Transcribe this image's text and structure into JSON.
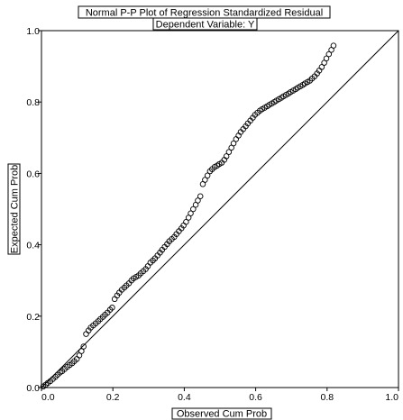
{
  "chart_data": {
    "type": "scatter",
    "title": "Normal P-P Plot of Regression Standardized Residual",
    "subtitle": "Dependent Variable: Y",
    "xlabel": "Observed Cum Prob",
    "ylabel": "Expected Cum Prob",
    "xlim": [
      0,
      1
    ],
    "ylim": [
      0,
      1
    ],
    "xticks": [
      "0.0",
      "0.2",
      "0.4",
      "0.6",
      "0.8",
      "1.0"
    ],
    "yticks": [
      "0.0",
      "0.2",
      "0.4",
      "0.6",
      "0.8",
      "1.0"
    ],
    "reference_line": [
      [
        0,
        0
      ],
      [
        1,
        1
      ]
    ],
    "grid": false,
    "legend": "none",
    "series": [
      {
        "marker": "open-circle",
        "points": [
          [
            0.005,
            0.003
          ],
          [
            0.012,
            0.008
          ],
          [
            0.018,
            0.013
          ],
          [
            0.025,
            0.018
          ],
          [
            0.032,
            0.024
          ],
          [
            0.039,
            0.03
          ],
          [
            0.045,
            0.036
          ],
          [
            0.052,
            0.042
          ],
          [
            0.058,
            0.046
          ],
          [
            0.065,
            0.052
          ],
          [
            0.072,
            0.058
          ],
          [
            0.079,
            0.063
          ],
          [
            0.086,
            0.068
          ],
          [
            0.092,
            0.074
          ],
          [
            0.099,
            0.08
          ],
          [
            0.106,
            0.09
          ],
          [
            0.112,
            0.102
          ],
          [
            0.118,
            0.115
          ],
          [
            0.125,
            0.15
          ],
          [
            0.132,
            0.16
          ],
          [
            0.138,
            0.168
          ],
          [
            0.145,
            0.174
          ],
          [
            0.152,
            0.18
          ],
          [
            0.159,
            0.186
          ],
          [
            0.165,
            0.192
          ],
          [
            0.172,
            0.198
          ],
          [
            0.178,
            0.204
          ],
          [
            0.185,
            0.21
          ],
          [
            0.192,
            0.218
          ],
          [
            0.198,
            0.224
          ],
          [
            0.205,
            0.248
          ],
          [
            0.212,
            0.258
          ],
          [
            0.218,
            0.266
          ],
          [
            0.225,
            0.274
          ],
          [
            0.232,
            0.28
          ],
          [
            0.238,
            0.286
          ],
          [
            0.245,
            0.292
          ],
          [
            0.252,
            0.3
          ],
          [
            0.258,
            0.306
          ],
          [
            0.265,
            0.31
          ],
          [
            0.272,
            0.314
          ],
          [
            0.278,
            0.32
          ],
          [
            0.285,
            0.326
          ],
          [
            0.292,
            0.332
          ],
          [
            0.298,
            0.34
          ],
          [
            0.305,
            0.35
          ],
          [
            0.312,
            0.356
          ],
          [
            0.318,
            0.362
          ],
          [
            0.325,
            0.37
          ],
          [
            0.332,
            0.378
          ],
          [
            0.338,
            0.386
          ],
          [
            0.345,
            0.394
          ],
          [
            0.352,
            0.402
          ],
          [
            0.358,
            0.41
          ],
          [
            0.365,
            0.416
          ],
          [
            0.372,
            0.422
          ],
          [
            0.378,
            0.43
          ],
          [
            0.385,
            0.438
          ],
          [
            0.392,
            0.446
          ],
          [
            0.398,
            0.454
          ],
          [
            0.405,
            0.464
          ],
          [
            0.412,
            0.476
          ],
          [
            0.418,
            0.488
          ],
          [
            0.425,
            0.5
          ],
          [
            0.432,
            0.512
          ],
          [
            0.438,
            0.524
          ],
          [
            0.445,
            0.536
          ],
          [
            0.452,
            0.57
          ],
          [
            0.458,
            0.582
          ],
          [
            0.465,
            0.594
          ],
          [
            0.472,
            0.606
          ],
          [
            0.478,
            0.612
          ],
          [
            0.485,
            0.618
          ],
          [
            0.492,
            0.622
          ],
          [
            0.498,
            0.626
          ],
          [
            0.505,
            0.63
          ],
          [
            0.512,
            0.638
          ],
          [
            0.518,
            0.648
          ],
          [
            0.525,
            0.66
          ],
          [
            0.532,
            0.672
          ],
          [
            0.538,
            0.684
          ],
          [
            0.545,
            0.696
          ],
          [
            0.552,
            0.706
          ],
          [
            0.558,
            0.716
          ],
          [
            0.565,
            0.724
          ],
          [
            0.572,
            0.732
          ],
          [
            0.578,
            0.74
          ],
          [
            0.585,
            0.748
          ],
          [
            0.592,
            0.756
          ],
          [
            0.598,
            0.764
          ],
          [
            0.605,
            0.77
          ],
          [
            0.612,
            0.776
          ],
          [
            0.618,
            0.78
          ],
          [
            0.625,
            0.784
          ],
          [
            0.632,
            0.788
          ],
          [
            0.638,
            0.792
          ],
          [
            0.645,
            0.796
          ],
          [
            0.652,
            0.8
          ],
          [
            0.658,
            0.804
          ],
          [
            0.665,
            0.808
          ],
          [
            0.672,
            0.812
          ],
          [
            0.678,
            0.816
          ],
          [
            0.685,
            0.82
          ],
          [
            0.692,
            0.824
          ],
          [
            0.698,
            0.828
          ],
          [
            0.705,
            0.832
          ],
          [
            0.712,
            0.836
          ],
          [
            0.718,
            0.84
          ],
          [
            0.725,
            0.844
          ],
          [
            0.732,
            0.848
          ],
          [
            0.738,
            0.852
          ],
          [
            0.745,
            0.856
          ],
          [
            0.752,
            0.86
          ],
          [
            0.758,
            0.866
          ],
          [
            0.765,
            0.872
          ],
          [
            0.772,
            0.88
          ],
          [
            0.778,
            0.888
          ],
          [
            0.785,
            0.898
          ],
          [
            0.792,
            0.91
          ],
          [
            0.798,
            0.922
          ],
          [
            0.805,
            0.934
          ],
          [
            0.812,
            0.946
          ],
          [
            0.818,
            0.958
          ]
        ]
      }
    ]
  }
}
